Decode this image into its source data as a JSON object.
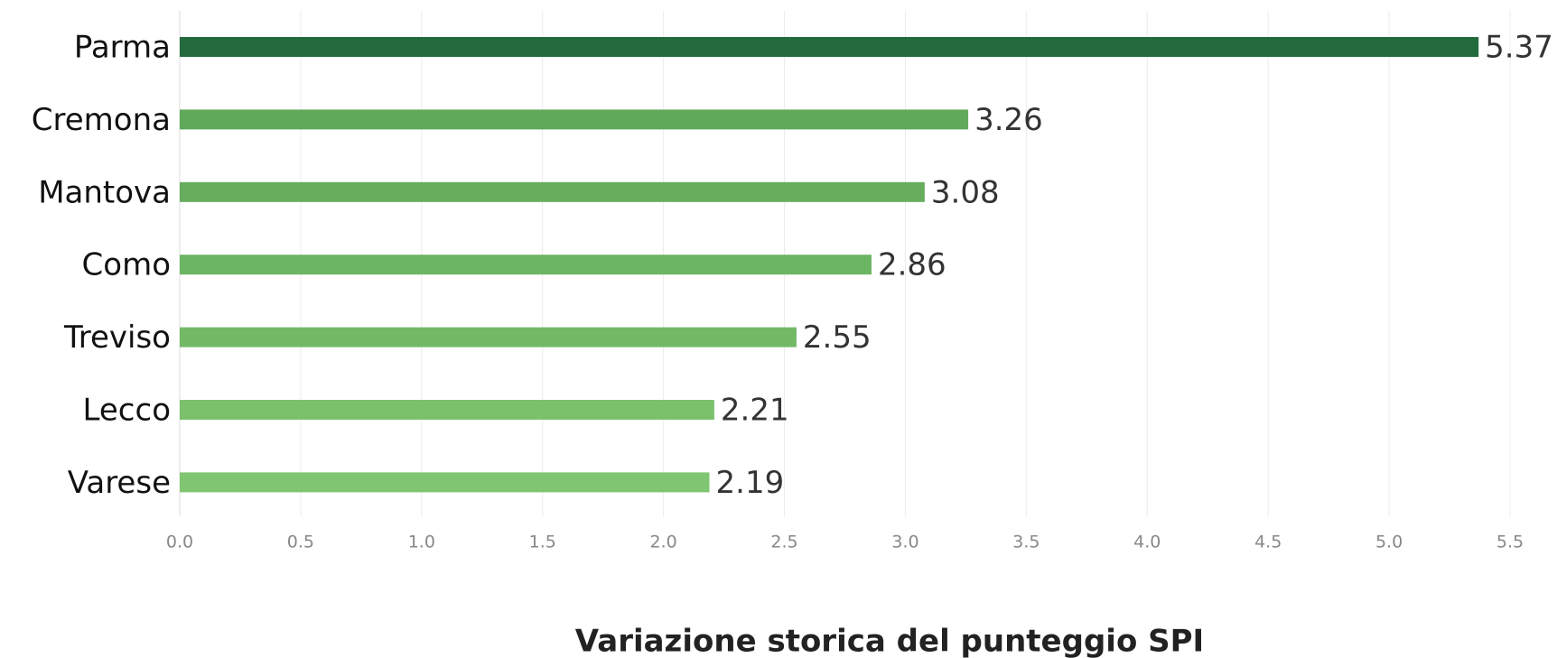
{
  "chart_data": {
    "type": "bar",
    "orientation": "horizontal",
    "x_label": "Variazione storica del punteggio SPI",
    "categories": [
      "Parma",
      "Cremona",
      "Mantova",
      "Como",
      "Treviso",
      "Lecco",
      "Varese"
    ],
    "values": [
      5.37,
      3.26,
      3.08,
      2.86,
      2.55,
      2.21,
      2.19
    ],
    "colors": [
      "#236b3d",
      "#60a85a",
      "#66ad5d",
      "#6cb563",
      "#72b966",
      "#7bc16c",
      "#80c571"
    ],
    "xlim": [
      0,
      5.5
    ],
    "xticks": [
      {
        "value": 0,
        "label": "0.0"
      },
      0.5,
      {
        "value": 1,
        "label": "1.0"
      },
      1.5,
      {
        "value": 2,
        "label": "2.0"
      },
      2.5,
      {
        "value": 3,
        "label": "3.0"
      },
      3.5,
      {
        "value": 4,
        "label": "4.0"
      },
      4.5,
      {
        "value": 5,
        "label": "5.0"
      },
      5.5
    ],
    "grid": true
  }
}
